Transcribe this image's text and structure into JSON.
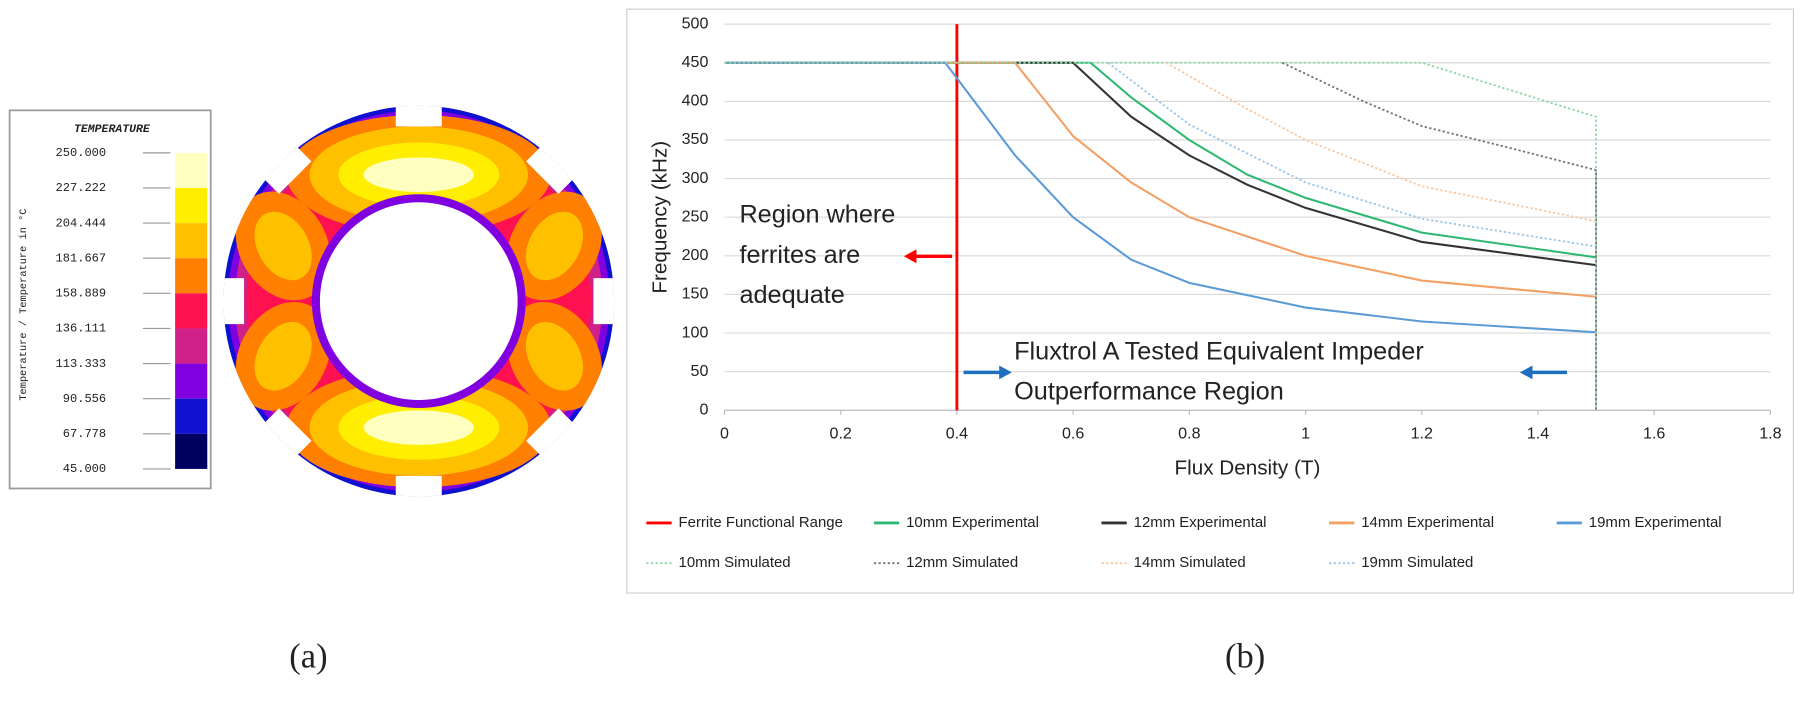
{
  "chart_data": [
    {
      "type": "contour",
      "title": "TEMPERATURE",
      "zlabel": "Temperature / Temperature in °C",
      "levels": [
        {
          "value": 250,
          "label": "250.000"
        },
        227.222,
        204.444,
        181.667,
        158.889,
        136.111,
        113.333,
        90.556,
        67.778,
        {
          "value": 45,
          "label": "45.000"
        }
      ],
      "colors": [
        "#ffffc0",
        "#ffee00",
        "#ffc000",
        "#ff8000",
        "#ff1050",
        "#d0208a",
        "#8000e0",
        "#1010d0",
        "#000060"
      ],
      "caption": "(a)"
    },
    {
      "type": "line",
      "xlabel": "Flux Density (T)",
      "ylabel": "Frequency (kHz)",
      "xlim": [
        0,
        1.8
      ],
      "xticks": [
        0,
        0.2,
        0.4,
        0.6,
        0.8,
        1,
        1.2,
        1.4,
        1.6,
        1.8
      ],
      "ylim": [
        0,
        500
      ],
      "yticks": [
        0,
        50,
        100,
        150,
        200,
        250,
        300,
        350,
        400,
        450,
        500
      ],
      "grid": true,
      "legend": "bottom",
      "series": [
        {
          "name": "Ferrite Functional Range",
          "color": "#ff0000",
          "style": "solid",
          "x": [
            0.4,
            0.4
          ],
          "values": [
            0,
            500
          ]
        },
        {
          "name": "10mm Experimental",
          "color": "#2eb872",
          "style": "solid",
          "x": [
            0,
            0.63,
            0.7,
            0.8,
            0.9,
            1.0,
            1.2,
            1.5
          ],
          "values": [
            450,
            450,
            405,
            350,
            305,
            275,
            230,
            198
          ]
        },
        {
          "name": "12mm Experimental",
          "color": "#333333",
          "style": "solid",
          "x": [
            0,
            0.6,
            0.7,
            0.8,
            0.9,
            1.0,
            1.2,
            1.5
          ],
          "values": [
            450,
            450,
            380,
            330,
            292,
            262,
            218,
            188
          ]
        },
        {
          "name": "14mm Experimental",
          "color": "#f4a064",
          "style": "solid",
          "x": [
            0,
            0.5,
            0.6,
            0.7,
            0.8,
            1.0,
            1.2,
            1.5
          ],
          "values": [
            450,
            450,
            355,
            295,
            250,
            200,
            168,
            147
          ]
        },
        {
          "name": "19mm Experimental",
          "color": "#5b9bd5",
          "style": "solid",
          "x": [
            0,
            0.38,
            0.45,
            0.5,
            0.6,
            0.7,
            0.8,
            1.0,
            1.2,
            1.5
          ],
          "values": [
            450,
            450,
            380,
            330,
            250,
            195,
            165,
            133,
            115,
            101
          ]
        },
        {
          "name": "10mm Simulated",
          "color": "#8fd6a8",
          "style": "dotted",
          "x": [
            0,
            1.2,
            1.5,
            1.5
          ],
          "values": [
            450,
            450,
            380,
            0
          ]
        },
        {
          "name": "12mm Simulated",
          "color": "#777777",
          "style": "dotted",
          "x": [
            0.96,
            1.1,
            1.2,
            1.35,
            1.5,
            1.5
          ],
          "values": [
            450,
            400,
            368,
            340,
            311,
            0
          ]
        },
        {
          "name": "14mm Simulated",
          "color": "#f8c8a4",
          "style": "dotted",
          "x": [
            0.76,
            0.9,
            1.0,
            1.2,
            1.5
          ],
          "values": [
            450,
            390,
            350,
            290,
            245
          ]
        },
        {
          "name": "19mm Simulated",
          "color": "#9cc6ea",
          "style": "dotted",
          "x": [
            0.66,
            0.8,
            1.0,
            1.2,
            1.5
          ],
          "values": [
            450,
            370,
            295,
            248,
            212
          ]
        }
      ],
      "annotations": [
        {
          "lines": [
            "Region where",
            "ferrites are",
            "adequate"
          ]
        },
        {
          "lines": [
            "Fluxtrol A Tested Equivalent Impeder",
            "Outperformance Region"
          ]
        }
      ],
      "caption": "(b)"
    }
  ]
}
